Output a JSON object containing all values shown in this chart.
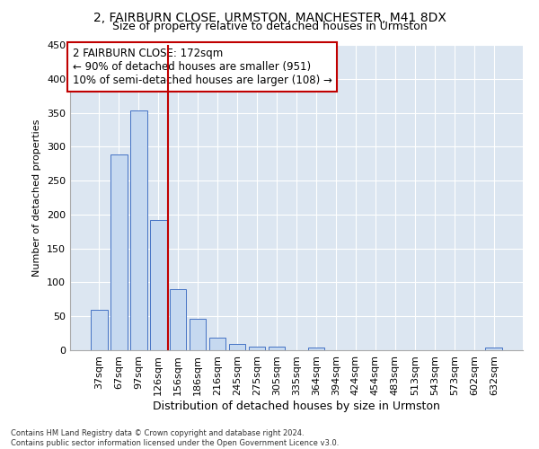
{
  "title1": "2, FAIRBURN CLOSE, URMSTON, MANCHESTER, M41 8DX",
  "title2": "Size of property relative to detached houses in Urmston",
  "xlabel": "Distribution of detached houses by size in Urmston",
  "ylabel": "Number of detached properties",
  "footnote": "Contains HM Land Registry data © Crown copyright and database right 2024.\nContains public sector information licensed under the Open Government Licence v3.0.",
  "categories": [
    "37sqm",
    "67sqm",
    "97sqm",
    "126sqm",
    "156sqm",
    "186sqm",
    "216sqm",
    "245sqm",
    "275sqm",
    "305sqm",
    "335sqm",
    "364sqm",
    "394sqm",
    "424sqm",
    "454sqm",
    "483sqm",
    "513sqm",
    "543sqm",
    "573sqm",
    "602sqm",
    "632sqm"
  ],
  "values": [
    59,
    289,
    354,
    192,
    90,
    46,
    19,
    9,
    5,
    5,
    0,
    4,
    0,
    0,
    0,
    0,
    0,
    0,
    0,
    0,
    4
  ],
  "bar_color": "#c6d9f0",
  "bar_edge_color": "#4472c4",
  "vline_x": 3.5,
  "vline_color": "#c00000",
  "annotation_text": "2 FAIRBURN CLOSE: 172sqm\n← 90% of detached houses are smaller (951)\n10% of semi-detached houses are larger (108) →",
  "annotation_box_color": "white",
  "annotation_box_edge_color": "#c00000",
  "ylim": [
    0,
    450
  ],
  "yticks": [
    0,
    50,
    100,
    150,
    200,
    250,
    300,
    350,
    400,
    450
  ],
  "background_color": "#dce6f1",
  "grid_color": "white",
  "title_fontsize": 10,
  "subtitle_fontsize": 9,
  "ylabel_fontsize": 8,
  "xlabel_fontsize": 9,
  "tick_fontsize": 8,
  "annotation_fontsize": 8.5
}
